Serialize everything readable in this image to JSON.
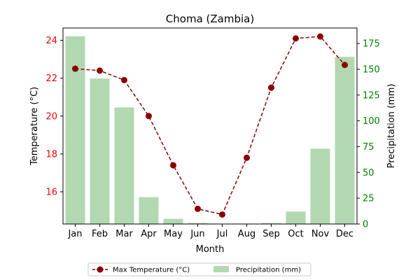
{
  "chart_data": {
    "type": "bar+line",
    "title": "Choma (Zambia)",
    "xlabel": "Month",
    "categories": [
      "Jan",
      "Feb",
      "Mar",
      "Apr",
      "May",
      "Jun",
      "Jul",
      "Aug",
      "Sep",
      "Oct",
      "Nov",
      "Dec"
    ],
    "temperature": {
      "name": "Max Temperature (°C)",
      "axis_label": "Temperature (°C)",
      "values": [
        22.5,
        22.4,
        21.9,
        20.0,
        17.4,
        15.1,
        14.8,
        17.8,
        21.5,
        24.1,
        24.2,
        22.7
      ],
      "ylim": [
        14.3,
        24.65
      ],
      "ticks": [
        16,
        18,
        20,
        22,
        24
      ],
      "color": "#8b0000",
      "axis_color": "#ff0000"
    },
    "precipitation": {
      "name": "Precipitation (mm)",
      "axis_label": "Precipitation (mm)",
      "values": [
        182,
        141,
        113,
        26,
        5,
        1,
        0,
        0,
        1,
        12,
        73,
        162
      ],
      "ylim": [
        0,
        190
      ],
      "ticks": [
        0,
        25,
        50,
        75,
        100,
        125,
        150,
        175
      ],
      "color": "#b2d8b2",
      "axis_color": "#008000"
    },
    "legend_position": "bottom-center",
    "grid": false
  }
}
